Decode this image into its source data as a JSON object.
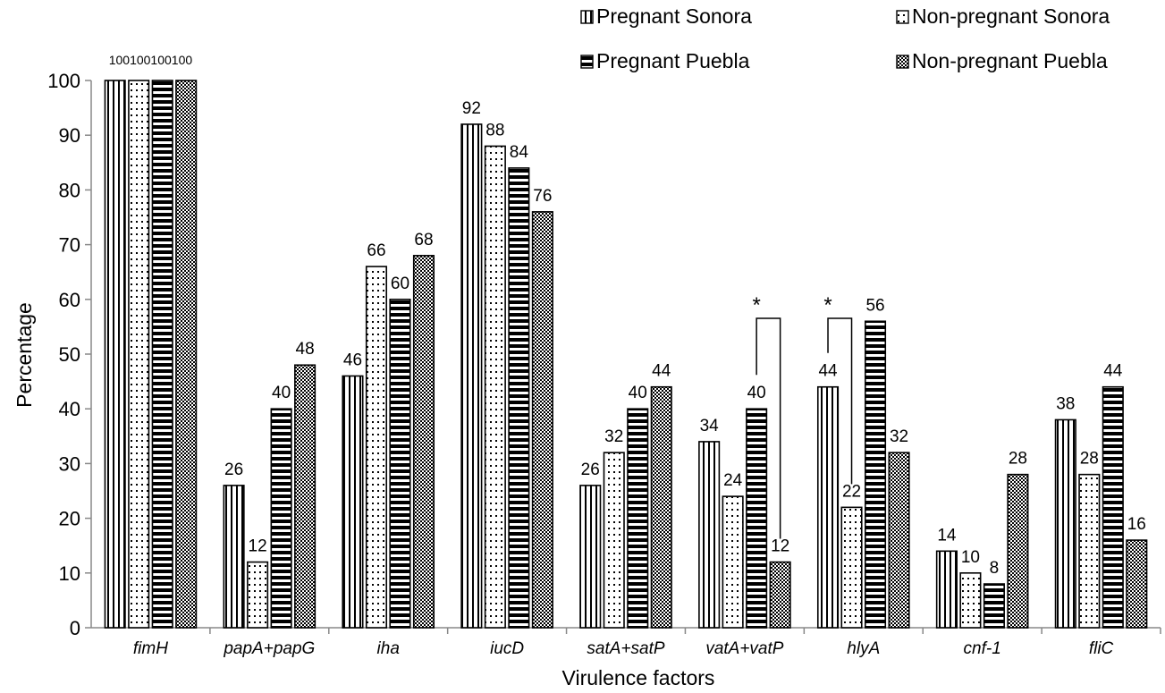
{
  "chart_data": {
    "type": "bar",
    "xlabel": "Virulence factors",
    "ylabel": "Percentage",
    "ylim": [
      0,
      100
    ],
    "yticks": [
      0,
      10,
      20,
      30,
      40,
      50,
      60,
      70,
      80,
      90,
      100
    ],
    "categories": [
      "fimH",
      "papA+papG",
      "iha",
      "iucD",
      "satA+satP",
      "vatA+vatP",
      "hlyA",
      "cnf-1",
      "fliC"
    ],
    "series": [
      {
        "name": "Pregnant Sonora",
        "pattern": "vertical-stripes",
        "values": [
          100,
          26,
          46,
          92,
          26,
          34,
          44,
          14,
          38
        ]
      },
      {
        "name": "Non-pregnant Sonora",
        "pattern": "dots",
        "values": [
          100,
          12,
          66,
          88,
          32,
          24,
          22,
          10,
          28
        ]
      },
      {
        "name": "Pregnant Puebla",
        "pattern": "horizontal-stripes",
        "values": [
          100,
          40,
          60,
          84,
          40,
          40,
          56,
          8,
          44
        ]
      },
      {
        "name": "Non-pregnant Puebla",
        "pattern": "checker",
        "values": [
          100,
          48,
          68,
          76,
          44,
          12,
          32,
          28,
          16
        ]
      }
    ],
    "legend": "top-right",
    "grid": false,
    "annotations": [
      {
        "text": "*",
        "category": "vatA+vatP",
        "between": [
          "Pregnant Puebla",
          "Non-pregnant Puebla"
        ]
      },
      {
        "text": "*",
        "category": "hlyA",
        "between": [
          "Pregnant Sonora",
          "Non-pregnant Sonora"
        ]
      }
    ]
  },
  "colors": {
    "bar_outline": "#000000",
    "background": "#ffffff"
  }
}
